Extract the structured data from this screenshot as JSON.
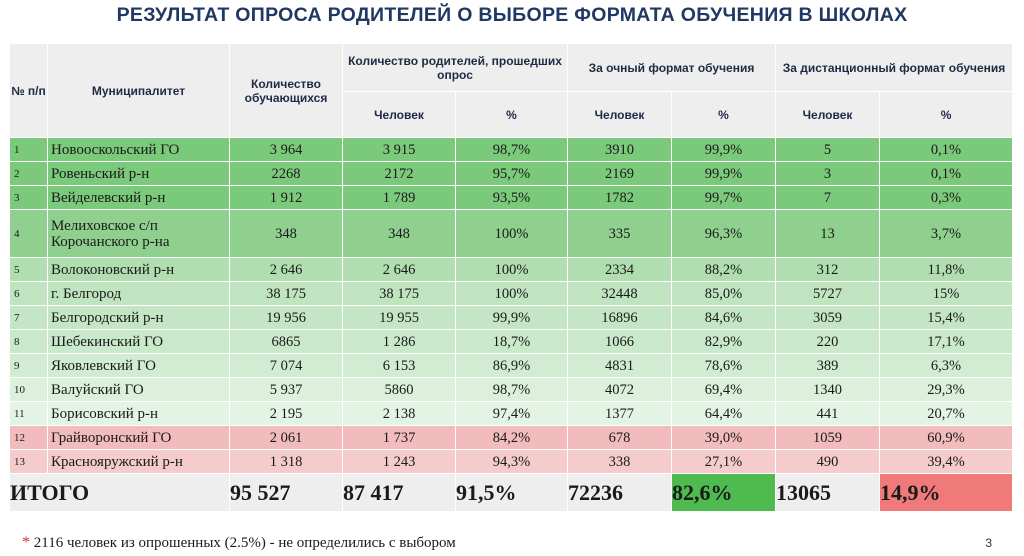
{
  "title": "РЕЗУЛЬТАТ ОПРОСА РОДИТЕЛЕЙ О ВЫБОРЕ ФОРМАТА ОБУЧЕНИЯ В ШКОЛАХ",
  "headers": {
    "num": "№ п/п",
    "municipality": "Муниципалитет",
    "students": "Количество обучающихся",
    "surveyed": "Количество родителей, прошедших опрос",
    "in_person": "За очный формат обучения",
    "remote": "За дистанционный формат обучения",
    "people": "Человек",
    "percent": "%"
  },
  "colors": {
    "header_bg": "#eeeeee",
    "total_green": "#4fba4f",
    "total_red": "#f07a7a",
    "footnote_star": "#e03030"
  },
  "rows": [
    {
      "num": "1",
      "name": "Новооскольский ГО",
      "students": "3 964",
      "surveyed": "3 915",
      "surveyed_pct": "98,7%",
      "inperson": "3910",
      "inperson_pct": "99,9%",
      "remote": "5",
      "remote_pct": "0,1%",
      "bg": "#7bc97b"
    },
    {
      "num": "2",
      "name": "Ровеньский р-н",
      "students": "2268",
      "surveyed": "2172",
      "surveyed_pct": "95,7%",
      "inperson": "2169",
      "inperson_pct": "99,9%",
      "remote": "3",
      "remote_pct": "0,1%",
      "bg": "#7bc97b"
    },
    {
      "num": "3",
      "name": "Вейделевский р-н",
      "students": "1 912",
      "surveyed": "1 789",
      "surveyed_pct": "93,5%",
      "inperson": "1782",
      "inperson_pct": "99,7%",
      "remote": "7",
      "remote_pct": "0,3%",
      "bg": "#7bc97b"
    },
    {
      "num": "4",
      "name": "Мелиховское с/п Корочанского р-на",
      "students": "348",
      "surveyed": "348",
      "surveyed_pct": "100%",
      "inperson": "335",
      "inperson_pct": "96,3%",
      "remote": "13",
      "remote_pct": "3,7%",
      "bg": "#8fd08f",
      "tall": true
    },
    {
      "num": "5",
      "name": "Волоконовский р-н",
      "students": "2 646",
      "surveyed": "2 646",
      "surveyed_pct": "100%",
      "inperson": "2334",
      "inperson_pct": "88,2%",
      "remote": "312",
      "remote_pct": "11,8%",
      "bg": "#b0deb0"
    },
    {
      "num": "6",
      "name": "г. Белгород",
      "students": "38 175",
      "surveyed": "38 175",
      "surveyed_pct": "100%",
      "inperson": "32448",
      "inperson_pct": "85,0%",
      "remote": "5727",
      "remote_pct": "15%",
      "bg": "#bfe4bf"
    },
    {
      "num": "7",
      "name": "Белгородский р-н",
      "students": "19 956",
      "surveyed": "19 955",
      "surveyed_pct": "99,9%",
      "inperson": "16896",
      "inperson_pct": "84,6%",
      "remote": "3059",
      "remote_pct": "15,4%",
      "bg": "#c4e6c4"
    },
    {
      "num": "8",
      "name": "Шебекинский ГО",
      "students": "6865",
      "surveyed": "1 286",
      "surveyed_pct": "18,7%",
      "inperson": "1066",
      "inperson_pct": "82,9%",
      "remote": "220",
      "remote_pct": "17,1%",
      "bg": "#cae9ca"
    },
    {
      "num": "9",
      "name": "Яковлевский ГО",
      "students": "7 074",
      "surveyed": "6 153",
      "surveyed_pct": "86,9%",
      "inperson": "4831",
      "inperson_pct": "78,6%",
      "remote": "389",
      "remote_pct": "6,3%",
      "bg": "#d2ecd2"
    },
    {
      "num": "10",
      "name": "Валуйский ГО",
      "students": "5 937",
      "surveyed": "5860",
      "surveyed_pct": "98,7%",
      "inperson": "4072",
      "inperson_pct": "69,4%",
      "remote": "1340",
      "remote_pct": "29,3%",
      "bg": "#dcf0dc"
    },
    {
      "num": "11",
      "name": "Борисовский р-н",
      "students": "2 195",
      "surveyed": "2 138",
      "surveyed_pct": "97,4%",
      "inperson": "1377",
      "inperson_pct": "64,4%",
      "remote": "441",
      "remote_pct": "20,7%",
      "bg": "#e4f4e4"
    },
    {
      "num": "12",
      "name": "Грайворонский ГО",
      "students": "2 061",
      "surveyed": "1 737",
      "surveyed_pct": "84,2%",
      "inperson": "678",
      "inperson_pct": "39,0%",
      "remote": "1059",
      "remote_pct": "60,9%",
      "bg": "#f2bcbc"
    },
    {
      "num": "13",
      "name": "Краснояружский р-н",
      "students": "1 318",
      "surveyed": "1 243",
      "surveyed_pct": "94,3%",
      "inperson": "338",
      "inperson_pct": "27,1%",
      "remote": "490",
      "remote_pct": "39,4%",
      "bg": "#f5cccc"
    }
  ],
  "total": {
    "label": "ИТОГО",
    "students": "95 527",
    "surveyed": "87 417",
    "surveyed_pct": "91,5%",
    "inperson": "72236",
    "inperson_pct": "82,6%",
    "remote": "13065",
    "remote_pct": "14,9%"
  },
  "footnote": {
    "star": "*",
    "text": "2116  человек из опрошенных (2.5%) - не определились с выбором"
  },
  "page_number": "3"
}
